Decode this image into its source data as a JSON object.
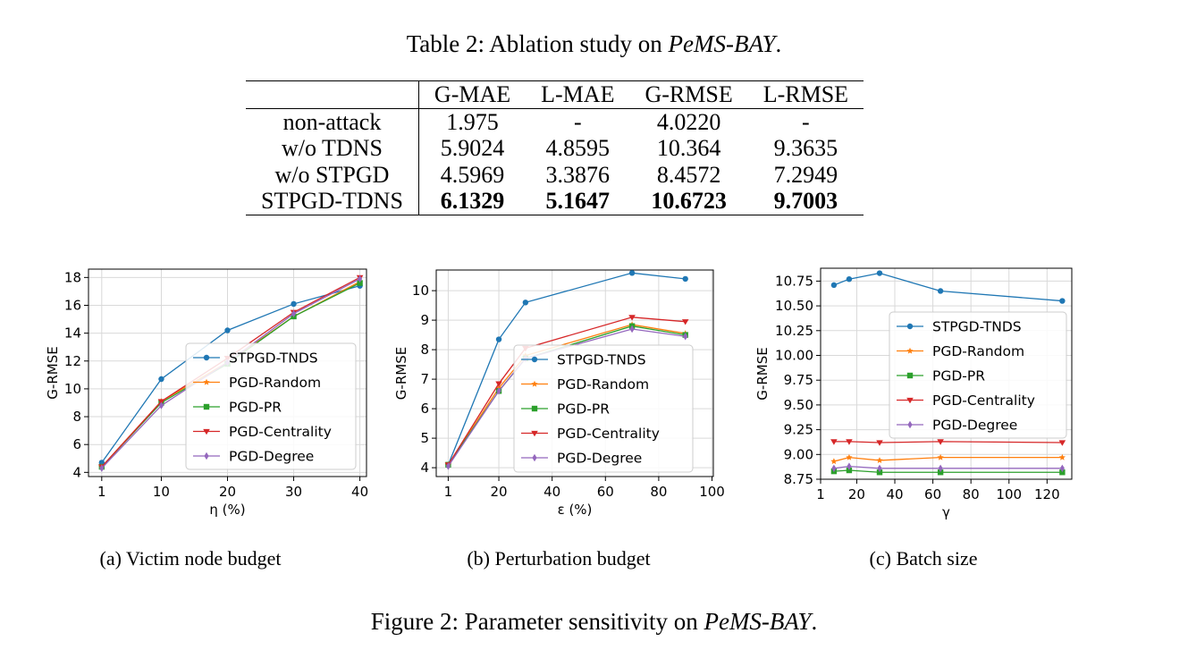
{
  "table": {
    "caption_prefix": "Table 2: Ablation study on ",
    "caption_italic": "PeMS-BAY",
    "caption_suffix": ".",
    "headers": [
      "",
      "G-MAE",
      "L-MAE",
      "G-RMSE",
      "L-RMSE"
    ],
    "rows": [
      {
        "name": "non-attack",
        "values": [
          "1.975",
          "-",
          "4.0220",
          "-"
        ]
      },
      {
        "name": "w/o TDNS",
        "values": [
          "5.9024",
          "4.8595",
          "10.364",
          "9.3635"
        ]
      },
      {
        "name": "w/o STPGD",
        "values": [
          "4.5969",
          "3.3876",
          "8.4572",
          "7.2949"
        ]
      },
      {
        "name": "STPGD-TDNS",
        "values": [
          "6.1329",
          "5.1647",
          "10.6723",
          "9.7003"
        ],
        "bold": true
      }
    ]
  },
  "figure": {
    "caption_prefix": "Figure 2: Parameter sensitivity on ",
    "caption_italic": "PeMS-BAY",
    "caption_suffix": "."
  },
  "series_colors": {
    "STPGD-TNDS": "#1f77b4",
    "PGD-Random": "#ff7f0e",
    "PGD-PR": "#2ca02c",
    "PGD-Centrality": "#d62728",
    "PGD-Degree": "#9467bd"
  },
  "chart_data": [
    {
      "type": "line",
      "subcaption": "(a) Victim node budget",
      "xlabel": "η (%)",
      "ylabel": "G-RMSE",
      "xlim": [
        -1,
        41
      ],
      "ylim": [
        3.7,
        18.6
      ],
      "xticks": [
        1,
        10,
        20,
        30,
        40
      ],
      "yticks": [
        4,
        6,
        8,
        10,
        12,
        14,
        16,
        18
      ],
      "ytick_labels": [
        "4",
        "6",
        "8",
        "10",
        "12",
        "14",
        "16",
        "18"
      ],
      "grid": true,
      "legend": [
        "STPGD-TNDS",
        "PGD-Random",
        "PGD-PR",
        "PGD-Centrality",
        "PGD-Degree"
      ],
      "legend_position": "lower-right",
      "x": [
        1,
        10,
        20,
        30,
        40
      ],
      "series": [
        {
          "name": "STPGD-TNDS",
          "values": [
            4.7,
            10.7,
            14.2,
            16.1,
            17.4
          ],
          "marker": "circle"
        },
        {
          "name": "PGD-Random",
          "values": [
            4.4,
            9.1,
            11.9,
            15.2,
            17.7
          ],
          "marker": "star"
        },
        {
          "name": "PGD-PR",
          "values": [
            4.4,
            9.0,
            11.8,
            15.2,
            17.6
          ],
          "marker": "square"
        },
        {
          "name": "PGD-Centrality",
          "values": [
            4.4,
            9.1,
            12.2,
            15.5,
            18.0
          ],
          "marker": "triangle"
        },
        {
          "name": "PGD-Degree",
          "values": [
            4.3,
            8.8,
            11.9,
            15.4,
            17.9
          ],
          "marker": "diamond"
        }
      ]
    },
    {
      "type": "line",
      "subcaption": "(b) Perturbation budget",
      "xlabel": "ε (%)",
      "ylabel": "G-RMSE",
      "xlim": [
        -3.5,
        100.5
      ],
      "ylim": [
        3.7,
        10.7
      ],
      "xticks": [
        1,
        20,
        40,
        60,
        80,
        100
      ],
      "yticks": [
        4,
        5,
        6,
        7,
        8,
        9,
        10
      ],
      "ytick_labels": [
        "4",
        "5",
        "6",
        "7",
        "8",
        "9",
        "10"
      ],
      "grid": true,
      "legend": [
        "STPGD-TNDS",
        "PGD-Random",
        "PGD-PR",
        "PGD-Centrality",
        "PGD-Degree"
      ],
      "legend_position": "lower-right",
      "x": [
        1,
        20,
        30,
        70,
        90
      ],
      "series": [
        {
          "name": "STPGD-TNDS",
          "values": [
            4.1,
            8.35,
            9.6,
            10.6,
            10.4
          ],
          "marker": "circle"
        },
        {
          "name": "PGD-Random",
          "values": [
            4.1,
            6.7,
            7.8,
            8.85,
            8.55
          ],
          "marker": "star"
        },
        {
          "name": "PGD-PR",
          "values": [
            4.1,
            6.6,
            7.7,
            8.8,
            8.5
          ],
          "marker": "square"
        },
        {
          "name": "PGD-Centrality",
          "values": [
            4.1,
            6.85,
            8.05,
            9.1,
            8.95
          ],
          "marker": "triangle"
        },
        {
          "name": "PGD-Degree",
          "values": [
            4.05,
            6.6,
            7.7,
            8.7,
            8.45
          ],
          "marker": "diamond"
        }
      ]
    },
    {
      "type": "line",
      "subcaption": "(c) Batch size",
      "xlabel": "γ",
      "ylabel": "G-RMSE",
      "xlim": [
        1,
        133
      ],
      "ylim": [
        8.75,
        10.88
      ],
      "xticks": [
        1,
        20,
        40,
        60,
        80,
        100,
        120
      ],
      "yticks": [
        8.75,
        9.0,
        9.25,
        9.5,
        9.75,
        10.0,
        10.25,
        10.5,
        10.75
      ],
      "ytick_labels": [
        "8.75",
        "9.00",
        "9.25",
        "9.50",
        "9.75",
        "10.00",
        "10.25",
        "10.50",
        "10.75"
      ],
      "grid": true,
      "legend": [
        "STPGD-TNDS",
        "PGD-Random",
        "PGD-PR",
        "PGD-Centrality",
        "PGD-Degree"
      ],
      "legend_position": "center-right",
      "x": [
        8,
        16,
        32,
        64,
        128
      ],
      "series": [
        {
          "name": "STPGD-TNDS",
          "values": [
            10.71,
            10.77,
            10.83,
            10.65,
            10.55
          ],
          "marker": "circle"
        },
        {
          "name": "PGD-Random",
          "values": [
            8.93,
            8.97,
            8.94,
            8.97,
            8.97
          ],
          "marker": "star"
        },
        {
          "name": "PGD-PR",
          "values": [
            8.83,
            8.84,
            8.82,
            8.82,
            8.82
          ],
          "marker": "square"
        },
        {
          "name": "PGD-Centrality",
          "values": [
            9.13,
            9.13,
            9.12,
            9.13,
            9.12
          ],
          "marker": "triangle"
        },
        {
          "name": "PGD-Degree",
          "values": [
            8.86,
            8.88,
            8.86,
            8.86,
            8.86
          ],
          "marker": "diamond"
        }
      ]
    }
  ]
}
